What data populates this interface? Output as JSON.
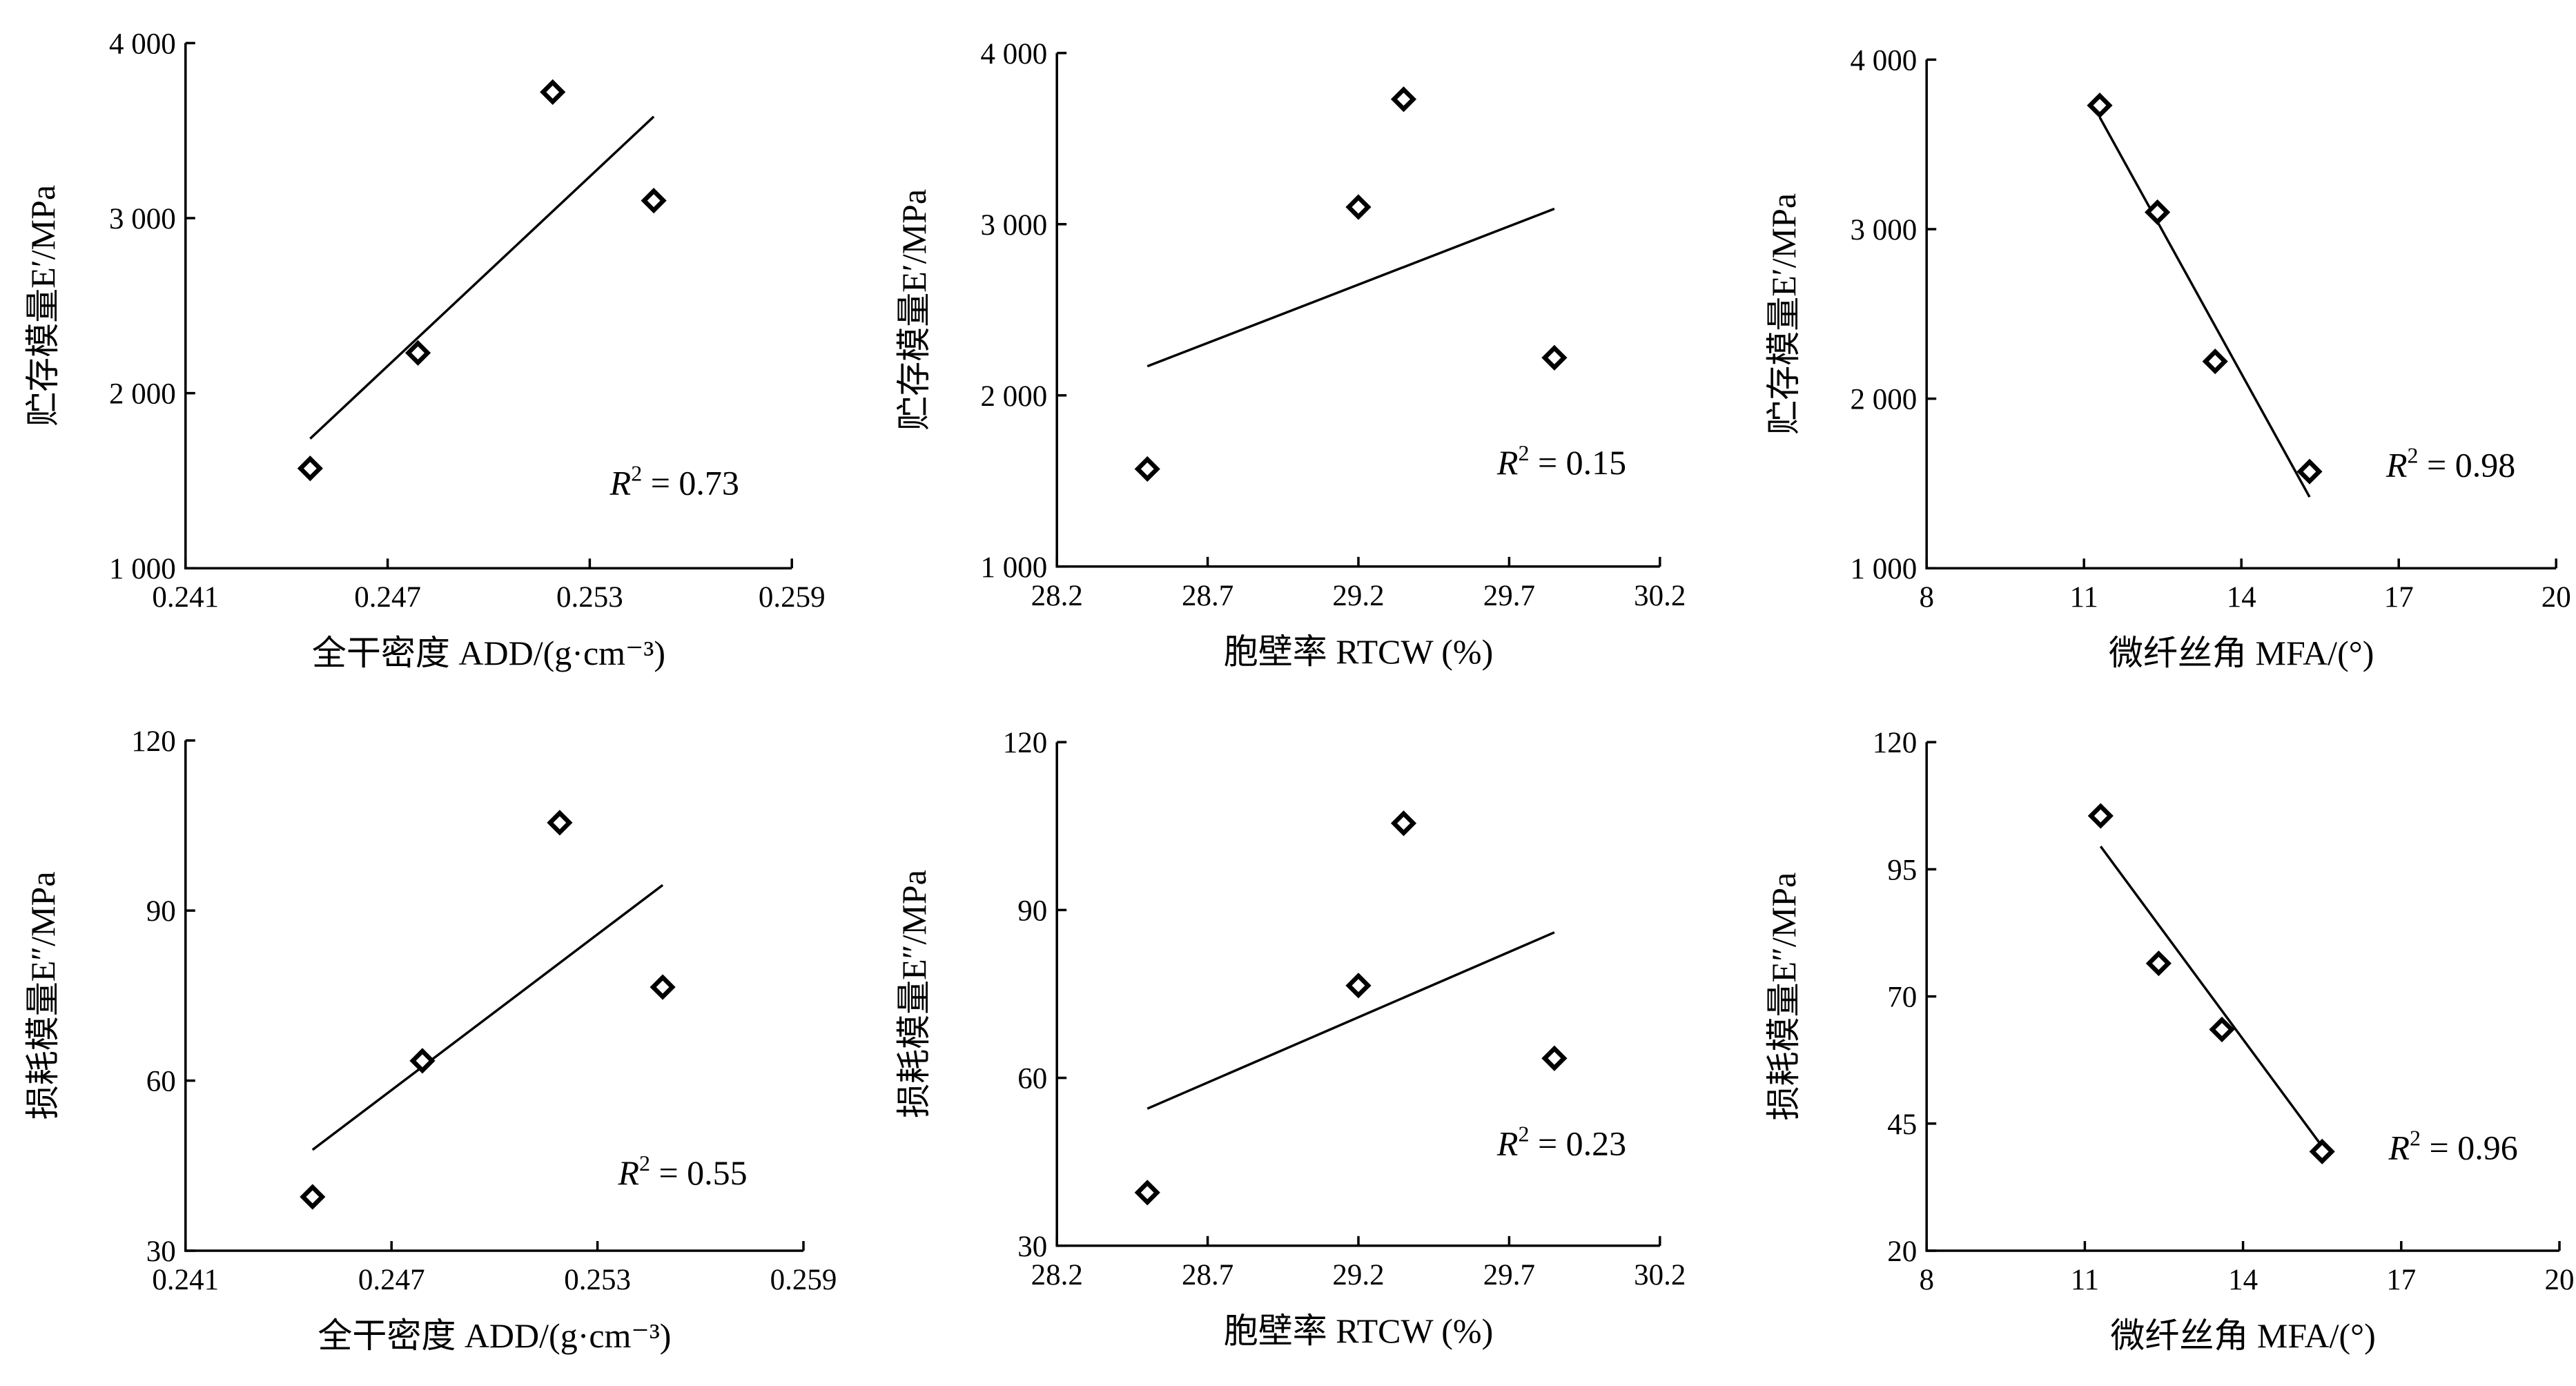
{
  "chart_data": [
    {
      "type": "scatter",
      "xlabel": "全干密度 ADD/(g·cm⁻³)",
      "ylabel": "贮存模量E′/MPa",
      "xlim": [
        0.241,
        0.259
      ],
      "ylim": [
        1000,
        4000
      ],
      "xticks": [
        0.241,
        0.247,
        0.253,
        0.259
      ],
      "xtick_labels": [
        "0.241",
        "0.247",
        "0.253",
        "0.259"
      ],
      "yticks": [
        1000,
        2000,
        3000,
        4000
      ],
      "ytick_labels": [
        "1 000",
        "2 000",
        "3 000",
        "4 000"
      ],
      "points": [
        {
          "x": 0.2447,
          "y": 1570
        },
        {
          "x": 0.2479,
          "y": 2230
        },
        {
          "x": 0.2519,
          "y": 3720
        },
        {
          "x": 0.2549,
          "y": 3100
        }
      ],
      "fit_line": [
        [
          0.2447,
          1740
        ],
        [
          0.2549,
          3580
        ]
      ],
      "annotation": {
        "prefix": "R",
        "sup": "2",
        "text": " = 0.73"
      }
    },
    {
      "type": "scatter",
      "xlabel": "胞壁率 RTCW (%)",
      "ylabel": "贮存模量E′/MPa",
      "xlim": [
        28.2,
        30.2
      ],
      "ylim": [
        1000,
        4000
      ],
      "xticks": [
        28.2,
        28.7,
        29.2,
        29.7,
        30.2
      ],
      "xtick_labels": [
        "28.2",
        "28.7",
        "29.2",
        "29.7",
        "30.2"
      ],
      "yticks": [
        1000,
        2000,
        3000,
        4000
      ],
      "ytick_labels": [
        "1 000",
        "2 000",
        "3 000",
        "4 000"
      ],
      "points": [
        {
          "x": 28.5,
          "y": 1570
        },
        {
          "x": 29.2,
          "y": 3100
        },
        {
          "x": 29.35,
          "y": 3730
        },
        {
          "x": 29.85,
          "y": 2220
        }
      ],
      "fit_line": [
        [
          28.5,
          2170
        ],
        [
          29.85,
          3090
        ]
      ],
      "annotation": {
        "prefix": "R",
        "sup": "2",
        "text": " = 0.15"
      }
    },
    {
      "type": "scatter",
      "xlabel": "微纤丝角 MFA/(°)",
      "ylabel": "贮存模量E′/MPa",
      "xlim": [
        8,
        20
      ],
      "ylim": [
        1000,
        4000
      ],
      "xticks": [
        8,
        11,
        14,
        17,
        20
      ],
      "xtick_labels": [
        "8",
        "11",
        "14",
        "17",
        "20"
      ],
      "yticks": [
        1000,
        2000,
        3000,
        4000
      ],
      "ytick_labels": [
        "1 000",
        "2 000",
        "3 000",
        "4 000"
      ],
      "points": [
        {
          "x": 11.3,
          "y": 3730
        },
        {
          "x": 12.4,
          "y": 3100
        },
        {
          "x": 13.5,
          "y": 2220
        },
        {
          "x": 15.3,
          "y": 1570
        }
      ],
      "fit_line": [
        [
          11.3,
          3660
        ],
        [
          15.3,
          1420
        ]
      ],
      "annotation": {
        "prefix": "R",
        "sup": "2",
        "text": " = 0.98"
      }
    },
    {
      "type": "scatter",
      "xlabel": "全干密度 ADD/(g·cm⁻³)",
      "ylabel": "损耗模量E″/MPa",
      "xlim": [
        0.241,
        0.259
      ],
      "ylim": [
        30,
        120
      ],
      "xticks": [
        0.241,
        0.247,
        0.253,
        0.259
      ],
      "xtick_labels": [
        "0.241",
        "0.247",
        "0.253",
        "0.259"
      ],
      "yticks": [
        30,
        60,
        90,
        120
      ],
      "ytick_labels": [
        "30",
        "60",
        "90",
        "120"
      ],
      "points": [
        {
          "x": 0.2447,
          "y": 39.5
        },
        {
          "x": 0.2479,
          "y": 63.5
        },
        {
          "x": 0.2519,
          "y": 105.5
        },
        {
          "x": 0.2549,
          "y": 76.5
        }
      ],
      "fit_line": [
        [
          0.2447,
          47.8
        ],
        [
          0.2549,
          94.5
        ]
      ],
      "annotation": {
        "prefix": "R",
        "sup": "2",
        "text": " = 0.55"
      }
    },
    {
      "type": "scatter",
      "xlabel": "胞壁率 RTCW (%)",
      "ylabel": "损耗模量E″/MPa",
      "xlim": [
        28.2,
        30.2
      ],
      "ylim": [
        30,
        120
      ],
      "xticks": [
        28.2,
        28.7,
        29.2,
        29.7,
        30.2
      ],
      "xtick_labels": [
        "28.2",
        "28.7",
        "29.2",
        "29.7",
        "30.2"
      ],
      "yticks": [
        30,
        60,
        90,
        120
      ],
      "ytick_labels": [
        "30",
        "60",
        "90",
        "120"
      ],
      "points": [
        {
          "x": 28.5,
          "y": 39.5
        },
        {
          "x": 29.2,
          "y": 76.5
        },
        {
          "x": 29.35,
          "y": 105.5
        },
        {
          "x": 29.85,
          "y": 63.5
        }
      ],
      "fit_line": [
        [
          28.5,
          54.5
        ],
        [
          29.85,
          86
        ]
      ],
      "annotation": {
        "prefix": "R",
        "sup": "2",
        "text": " = 0.23"
      }
    },
    {
      "type": "scatter",
      "xlabel": "微纤丝角 MFA/(°)",
      "ylabel": "损耗模量E″/MPa",
      "xlim": [
        8,
        20
      ],
      "ylim": [
        20,
        120
      ],
      "xticks": [
        8,
        11,
        14,
        17,
        20
      ],
      "xtick_labels": [
        "8",
        "11",
        "14",
        "17",
        "20"
      ],
      "yticks": [
        20,
        45,
        70,
        95,
        120
      ],
      "ytick_labels": [
        "20",
        "45",
        "70",
        "95",
        "120"
      ],
      "points": [
        {
          "x": 11.3,
          "y": 105.5
        },
        {
          "x": 12.4,
          "y": 76.5
        },
        {
          "x": 13.6,
          "y": 63.5
        },
        {
          "x": 15.5,
          "y": 39.5
        }
      ],
      "fit_line": [
        [
          11.3,
          99.5
        ],
        [
          15.5,
          40.5
        ]
      ],
      "annotation": {
        "prefix": "R",
        "sup": "2",
        "text": " = 0.96"
      }
    }
  ]
}
